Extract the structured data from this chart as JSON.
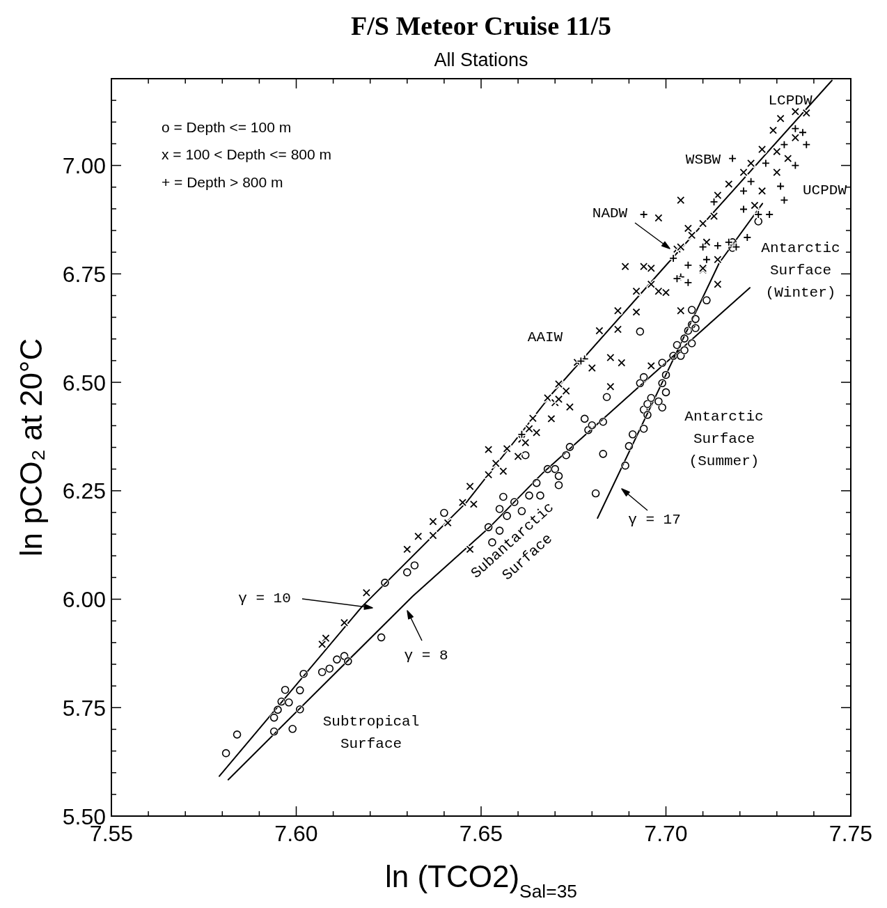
{
  "chart_data": {
    "type": "scatter",
    "title": "F/S Meteor Cruise 11/5",
    "subtitle": "All Stations",
    "xlabel": "ln (TCO2)$_{Sal=35}$",
    "ylabel": "ln pCO₂ at 20°C",
    "xlim": [
      7.55,
      7.75
    ],
    "ylim": [
      5.5,
      7.2
    ],
    "xticks": [
      {
        "value": 7.55,
        "label": "7.55"
      },
      {
        "value": 7.56,
        "label": null
      },
      {
        "value": 7.57,
        "label": null
      },
      {
        "value": 7.58,
        "label": null
      },
      {
        "value": 7.59,
        "label": null
      },
      {
        "value": 7.6,
        "label": "7.60"
      },
      {
        "value": 7.61,
        "label": null
      },
      {
        "value": 7.62,
        "label": null
      },
      {
        "value": 7.63,
        "label": null
      },
      {
        "value": 7.64,
        "label": null
      },
      {
        "value": 7.65,
        "label": "7.65"
      },
      {
        "value": 7.66,
        "label": null
      },
      {
        "value": 7.67,
        "label": null
      },
      {
        "value": 7.68,
        "label": null
      },
      {
        "value": 7.69,
        "label": null
      },
      {
        "value": 7.7,
        "label": "7.70"
      },
      {
        "value": 7.71,
        "label": null
      },
      {
        "value": 7.72,
        "label": null
      },
      {
        "value": 7.73,
        "label": null
      },
      {
        "value": 7.74,
        "label": null
      },
      {
        "value": 7.75,
        "label": "7.75"
      }
    ],
    "yticks": [
      {
        "value": 5.5,
        "label": "5.50"
      },
      {
        "value": 5.55,
        "label": null
      },
      {
        "value": 5.6,
        "label": null
      },
      {
        "value": 5.65,
        "label": null
      },
      {
        "value": 5.7,
        "label": null
      },
      {
        "value": 5.75,
        "label": "5.75"
      },
      {
        "value": 5.8,
        "label": null
      },
      {
        "value": 5.85,
        "label": null
      },
      {
        "value": 5.9,
        "label": null
      },
      {
        "value": 5.95,
        "label": null
      },
      {
        "value": 6.0,
        "label": "6.00"
      },
      {
        "value": 6.05,
        "label": null
      },
      {
        "value": 6.1,
        "label": null
      },
      {
        "value": 6.15,
        "label": null
      },
      {
        "value": 6.2,
        "label": null
      },
      {
        "value": 6.25,
        "label": "6.25"
      },
      {
        "value": 6.3,
        "label": null
      },
      {
        "value": 6.35,
        "label": null
      },
      {
        "value": 6.4,
        "label": null
      },
      {
        "value": 6.45,
        "label": null
      },
      {
        "value": 6.5,
        "label": "6.50"
      },
      {
        "value": 6.55,
        "label": null
      },
      {
        "value": 6.6,
        "label": null
      },
      {
        "value": 6.65,
        "label": null
      },
      {
        "value": 6.7,
        "label": null
      },
      {
        "value": 6.75,
        "label": "6.75"
      },
      {
        "value": 6.8,
        "label": null
      },
      {
        "value": 6.85,
        "label": null
      },
      {
        "value": 6.9,
        "label": null
      },
      {
        "value": 6.95,
        "label": null
      },
      {
        "value": 7.0,
        "label": "7.00"
      },
      {
        "value": 7.05,
        "label": null
      },
      {
        "value": 7.1,
        "label": null
      },
      {
        "value": 7.15,
        "label": null
      }
    ],
    "grid": false,
    "series": [
      {
        "color": "#000000",
        "marker": "circle",
        "x": [
          7.581,
          7.584,
          7.594,
          7.599,
          7.601,
          7.594,
          7.595,
          7.596,
          7.598,
          7.597,
          7.601,
          7.602,
          7.607,
          7.609,
          7.611,
          7.613,
          7.614,
          7.623,
          7.624,
          7.63,
          7.632,
          7.64,
          7.652,
          7.653,
          7.655,
          7.655,
          7.656,
          7.657,
          7.659,
          7.661,
          7.663,
          7.665,
          7.666,
          7.668,
          7.67,
          7.671,
          7.671,
          7.662,
          7.673,
          7.674,
          7.678,
          7.679,
          7.68,
          7.683,
          7.684,
          7.683,
          7.681,
          7.691,
          7.69,
          7.689,
          7.694,
          7.694,
          7.695,
          7.695,
          7.696,
          7.699,
          7.698,
          7.7,
          7.699,
          7.7,
          7.699,
          7.694,
          7.693,
          7.703,
          7.702,
          7.704,
          7.705,
          7.705,
          7.706,
          7.707,
          7.708,
          7.707,
          7.708,
          7.711,
          7.707,
          7.693,
          7.725,
          7.718,
          7.718
        ],
        "values": [
          5.645,
          5.688,
          5.695,
          5.701,
          5.746,
          5.727,
          5.745,
          5.764,
          5.762,
          5.791,
          5.79,
          5.828,
          5.832,
          5.84,
          5.861,
          5.869,
          5.857,
          5.912,
          6.038,
          6.062,
          6.078,
          6.199,
          6.166,
          6.131,
          6.158,
          6.208,
          6.236,
          6.192,
          6.224,
          6.203,
          6.239,
          6.268,
          6.239,
          6.3,
          6.3,
          6.284,
          6.263,
          6.332,
          6.332,
          6.351,
          6.416,
          6.39,
          6.401,
          6.409,
          6.466,
          6.335,
          6.244,
          6.38,
          6.353,
          6.308,
          6.393,
          6.437,
          6.45,
          6.425,
          6.464,
          6.442,
          6.456,
          6.477,
          6.498,
          6.517,
          6.545,
          6.512,
          6.498,
          6.586,
          6.561,
          6.561,
          6.574,
          6.601,
          6.619,
          6.633,
          6.646,
          6.667,
          6.625,
          6.689,
          6.59,
          6.617,
          6.871,
          6.81,
          6.823
        ]
      },
      {
        "color": "#000000",
        "marker": "x",
        "x": [
          7.619,
          7.613,
          7.608,
          7.607,
          7.63,
          7.633,
          7.637,
          7.637,
          7.641,
          7.647,
          7.645,
          7.648,
          7.647,
          7.652,
          7.652,
          7.654,
          7.656,
          7.657,
          7.66,
          7.661,
          7.662,
          7.663,
          7.664,
          7.665,
          7.669,
          7.668,
          7.67,
          7.671,
          7.673,
          7.674,
          7.671,
          7.676,
          7.68,
          7.682,
          7.687,
          7.685,
          7.688,
          7.685,
          7.687,
          7.692,
          7.692,
          7.696,
          7.698,
          7.7,
          7.689,
          7.694,
          7.696,
          7.704,
          7.714,
          7.71,
          7.698,
          7.704,
          7.714,
          7.706,
          7.71,
          7.713,
          7.714,
          7.717,
          7.721,
          7.723,
          7.726,
          7.729,
          7.731,
          7.735,
          7.738,
          7.73,
          7.733,
          7.735,
          7.73,
          7.726,
          7.724,
          7.703,
          7.704,
          7.707,
          7.711,
          7.71,
          7.696
        ],
        "values": [
          6.015,
          5.946,
          5.91,
          5.896,
          6.115,
          6.145,
          6.179,
          6.147,
          6.176,
          6.26,
          6.223,
          6.219,
          6.115,
          6.287,
          6.345,
          6.313,
          6.295,
          6.347,
          6.329,
          6.369,
          6.361,
          6.393,
          6.417,
          6.384,
          6.416,
          6.464,
          6.453,
          6.461,
          6.48,
          6.443,
          6.496,
          6.546,
          6.533,
          6.619,
          6.622,
          6.557,
          6.545,
          6.49,
          6.665,
          6.662,
          6.71,
          6.726,
          6.71,
          6.707,
          6.767,
          6.767,
          6.538,
          6.665,
          6.726,
          6.759,
          6.879,
          6.92,
          6.783,
          6.855,
          6.866,
          6.883,
          6.931,
          6.957,
          6.984,
          7.005,
          7.037,
          7.081,
          7.108,
          7.124,
          7.121,
          6.984,
          7.016,
          7.064,
          7.032,
          6.941,
          6.908,
          6.807,
          6.812,
          6.839,
          6.823,
          6.763,
          6.763
        ]
      },
      {
        "color": "#000000",
        "marker": "cross",
        "x": [
          7.718,
          7.694,
          7.713,
          7.71,
          7.714,
          7.719,
          7.711,
          7.704,
          7.706,
          7.706,
          7.702,
          7.725,
          7.728,
          7.732,
          7.738,
          7.737,
          7.735,
          7.731,
          7.722,
          7.717,
          7.721,
          7.723,
          7.727,
          7.732,
          7.735,
          7.721,
          7.703,
          7.678,
          7.677,
          7.661
        ],
        "values": [
          7.016,
          6.887,
          6.916,
          6.812,
          6.815,
          6.812,
          6.783,
          6.743,
          6.73,
          6.77,
          6.786,
          6.887,
          6.887,
          6.92,
          7.048,
          7.076,
          7.0,
          6.952,
          6.834,
          6.823,
          6.899,
          6.963,
          7.005,
          7.048,
          7.085,
          6.941,
          6.739,
          6.554,
          6.549,
          6.38
        ]
      },
      {
        "type": "line",
        "color": "#000000",
        "marker": "none",
        "line_style": "solid",
        "x": [
          7.5792,
          7.6178,
          7.646,
          7.6692,
          7.6993,
          7.7449
        ],
        "values": [
          5.592,
          5.983,
          6.223,
          6.474,
          6.763,
          7.196
        ]
      },
      {
        "type": "line",
        "color": "#000000",
        "marker": "none",
        "line_style": "solid",
        "x": [
          7.5816,
          7.6315,
          7.6523,
          7.6668,
          7.6931,
          7.7227
        ],
        "values": [
          5.584,
          6.007,
          6.166,
          6.292,
          6.493,
          6.718
        ]
      },
      {
        "type": "line",
        "color": "#000000",
        "marker": "none",
        "line_style": "solid",
        "x": [
          7.6815,
          7.7144,
          7.7261
        ],
        "values": [
          6.187,
          6.775,
          6.912
        ]
      }
    ],
    "annotations": [
      "γ = 10",
      "γ = 8",
      "γ = 17",
      "NADW",
      "WSBW",
      "LCPDW",
      "UCPDW",
      "Antarctic\nSurface\n(Winter)",
      "AAIW",
      "Antarctic\nSurface\n(Summer)",
      "Subantarctic\nSurface",
      "Subtropical\nSurface",
      "o = Depth <= 100 m",
      "x = 100 < Depth <= 800 m",
      "+ = Depth > 800 m"
    ]
  }
}
